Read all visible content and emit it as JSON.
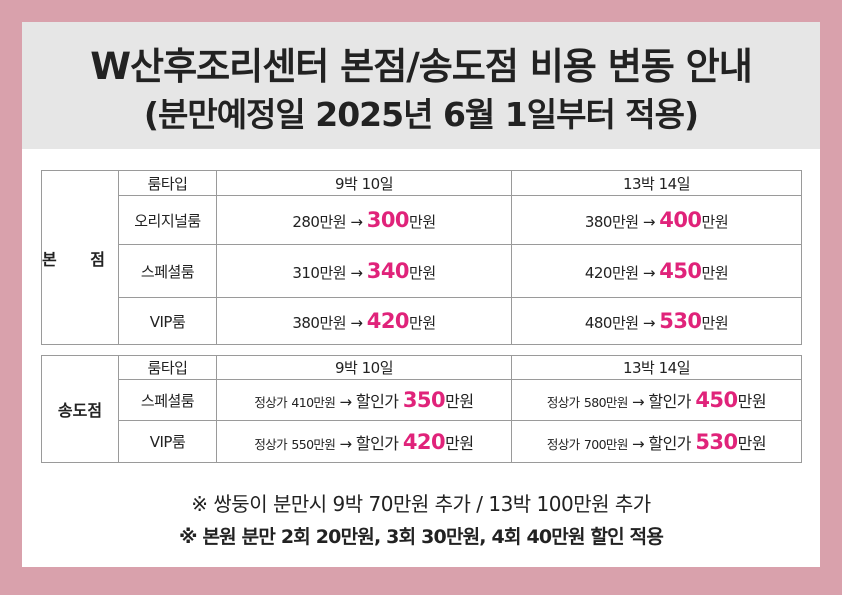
{
  "header": {
    "title": "W산후조리센터 본점/송도점 비용 변동 안내",
    "subtitle": "(분만예정일 2025년 6월 1일부터 적용)"
  },
  "colors": {
    "accent": "#e0237a",
    "frame": "#d9a1ac",
    "header_bg": "#e6e6e6"
  },
  "arrow": "→",
  "unit": "만원",
  "main_branch": {
    "name": "본 점",
    "headers": [
      "룸타입",
      "9박 10일",
      "13박 14일"
    ],
    "rows": [
      {
        "room": "오리지널룸",
        "p9_old": "280만원",
        "p9_new": "300",
        "p13_old": "380만원",
        "p13_new": "400"
      },
      {
        "room": "스페셜룸",
        "p9_old": "310만원",
        "p9_new": "340",
        "p13_old": "420만원",
        "p13_new": "450"
      },
      {
        "room": "VIP룸",
        "p9_old": "380만원",
        "p9_new": "420",
        "p13_old": "480만원",
        "p13_new": "530"
      }
    ]
  },
  "songdo_branch": {
    "name": "송도점",
    "headers": [
      "룸타입",
      "9박 10일",
      "13박 14일"
    ],
    "regular_label": "정상가",
    "discount_label": "할인가",
    "rows": [
      {
        "room": "스페셜룸",
        "p9_regular": "410만원",
        "p9_discount": "350",
        "p13_regular": "580만원",
        "p13_discount": "450"
      },
      {
        "room": "VIP룸",
        "p9_regular": "550만원",
        "p9_discount": "420",
        "p13_regular": "700만원",
        "p13_discount": "530"
      }
    ]
  },
  "notes": [
    "※ 쌍둥이 분만시 9박 70만원 추가 / 13박 100만원 추가",
    "※ 본원 분만 2회 20만원, 3회 30만원, 4회 40만원 할인 적용"
  ]
}
